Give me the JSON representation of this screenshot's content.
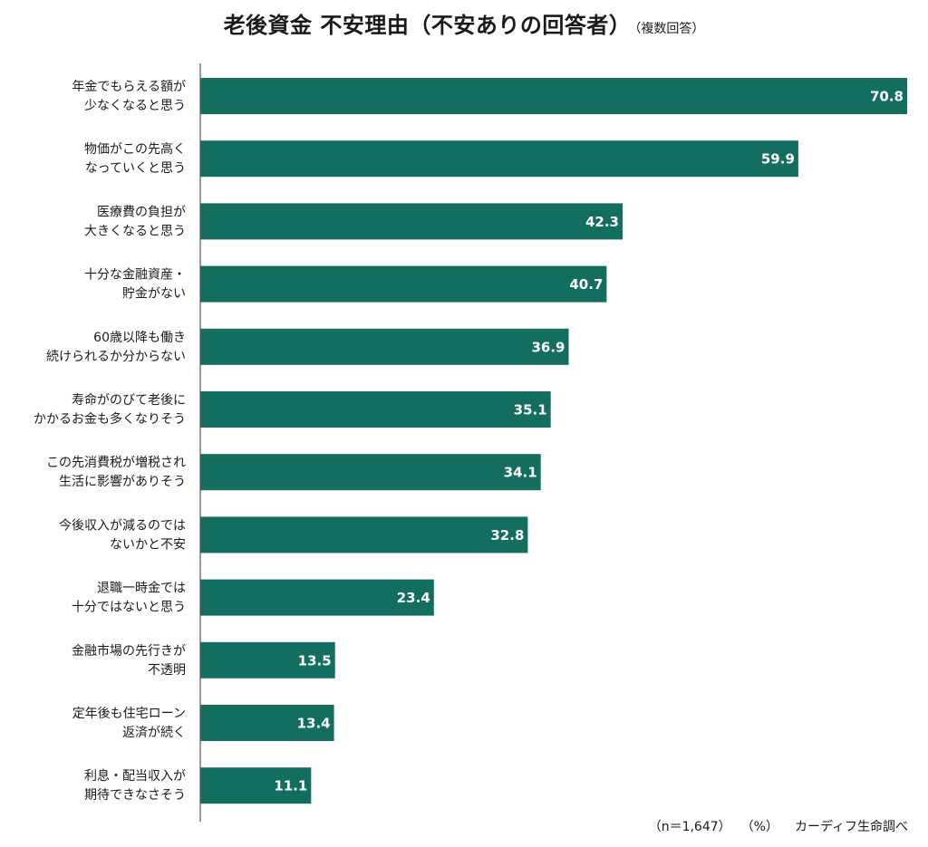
{
  "chart_data": {
    "type": "bar",
    "orientation": "horizontal",
    "title": "老後資金 不安理由（不安ありの回答者）",
    "subtitle": "（複数回答）",
    "categories": [
      [
        "年金でもらえる額が",
        "少なくなると思う"
      ],
      [
        "物価がこの先高く",
        "なっていくと思う"
      ],
      [
        "医療費の負担が",
        "大きくなると思う"
      ],
      [
        "十分な金融資産・",
        "貯金がない"
      ],
      [
        "60歳以降も働き",
        "続けられるか分からない"
      ],
      [
        "寿命がのびて老後に",
        "かかるお金も多くなりそう"
      ],
      [
        "この先消費税が増税され",
        "生活に影響がありそう"
      ],
      [
        "今後収入が減るのでは",
        "ないかと不安"
      ],
      [
        "退職一時金では",
        "十分ではないと思う"
      ],
      [
        "金融市場の先行きが",
        "不透明"
      ],
      [
        "定年後も住宅ローン",
        "返済が続く"
      ],
      [
        "利息・配当収入が",
        "期待できなさそう"
      ]
    ],
    "values": [
      70.8,
      59.9,
      42.3,
      40.7,
      36.9,
      35.1,
      34.1,
      32.8,
      23.4,
      13.5,
      13.4,
      11.1
    ],
    "value_labels": [
      "70.8",
      "59.9",
      "42.3",
      "40.7",
      "36.9",
      "35.1",
      "34.1",
      "32.8",
      "23.4",
      "13.5",
      "13.4",
      "11.1"
    ],
    "xlim": [
      0,
      70.8
    ],
    "unit": "%",
    "bar_color": "#136e60",
    "grid": false,
    "xlabel": "",
    "ylabel": ""
  },
  "footer": {
    "sample": "（n＝1,647）",
    "unit": "（%）",
    "source": "カーディフ生命調べ"
  }
}
